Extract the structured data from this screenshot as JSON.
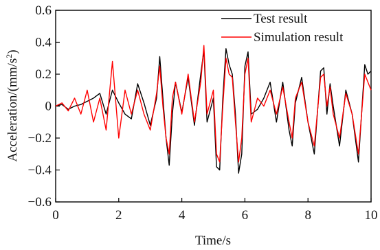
{
  "chart_data": {
    "type": "line",
    "xlabel": "Time/s",
    "ylabel_main": "Acceleration/(mm/s",
    "ylabel_sup": "2",
    "ylabel_close": ")",
    "xlim": [
      0,
      10
    ],
    "ylim": [
      -0.6,
      0.6
    ],
    "x_ticks": [
      0,
      2,
      4,
      6,
      8,
      10
    ],
    "x_tick_labels": [
      "0",
      "2",
      "4",
      "6",
      "8",
      "10"
    ],
    "y_ticks": [
      -0.6,
      -0.4,
      -0.2,
      0,
      0.2,
      0.4,
      0.6
    ],
    "y_tick_labels": [
      "−0.6",
      "−0.4",
      "−0.2",
      "0",
      "0.2",
      "0.4",
      "0.6"
    ],
    "grid": false,
    "legend_position": "top-right",
    "series": [
      {
        "name": "Test result",
        "color": "#000000",
        "x": [
          0.0,
          0.2,
          0.4,
          0.6,
          0.8,
          1.0,
          1.2,
          1.4,
          1.6,
          1.8,
          2.0,
          2.2,
          2.4,
          2.6,
          2.8,
          3.0,
          3.2,
          3.3,
          3.4,
          3.5,
          3.6,
          3.7,
          3.8,
          4.0,
          4.2,
          4.4,
          4.6,
          4.7,
          4.8,
          5.0,
          5.1,
          5.2,
          5.3,
          5.4,
          5.5,
          5.6,
          5.7,
          5.8,
          5.9,
          6.0,
          6.1,
          6.2,
          6.4,
          6.6,
          6.8,
          7.0,
          7.2,
          7.4,
          7.5,
          7.6,
          7.8,
          8.0,
          8.2,
          8.4,
          8.5,
          8.6,
          8.7,
          8.8,
          9.0,
          9.2,
          9.4,
          9.6,
          9.8,
          9.9,
          10.0
        ],
        "y": [
          0.0,
          0.01,
          -0.02,
          0.0,
          0.01,
          0.03,
          0.05,
          0.08,
          -0.05,
          0.1,
          0.02,
          -0.05,
          -0.08,
          0.14,
          0.02,
          -0.12,
          0.05,
          0.31,
          0.05,
          -0.2,
          -0.37,
          -0.05,
          0.15,
          -0.04,
          0.18,
          -0.12,
          0.2,
          0.35,
          -0.1,
          0.05,
          -0.38,
          -0.4,
          0.05,
          0.36,
          0.26,
          0.2,
          -0.05,
          -0.42,
          -0.3,
          0.25,
          0.34,
          -0.05,
          -0.02,
          0.05,
          0.15,
          -0.1,
          0.15,
          -0.15,
          -0.25,
          0.02,
          0.18,
          -0.1,
          -0.3,
          0.22,
          0.24,
          -0.05,
          0.14,
          0.0,
          -0.25,
          0.1,
          -0.05,
          -0.35,
          0.26,
          0.2,
          0.22
        ]
      },
      {
        "name": "Simulation result",
        "color": "#ff0000",
        "x": [
          0.0,
          0.2,
          0.4,
          0.6,
          0.8,
          1.0,
          1.2,
          1.4,
          1.6,
          1.8,
          2.0,
          2.2,
          2.4,
          2.6,
          2.8,
          3.0,
          3.2,
          3.3,
          3.4,
          3.5,
          3.6,
          3.7,
          3.8,
          4.0,
          4.2,
          4.4,
          4.6,
          4.7,
          4.8,
          5.0,
          5.1,
          5.2,
          5.3,
          5.4,
          5.5,
          5.6,
          5.7,
          5.8,
          5.9,
          6.0,
          6.1,
          6.2,
          6.4,
          6.6,
          6.8,
          7.0,
          7.2,
          7.4,
          7.5,
          7.6,
          7.8,
          8.0,
          8.2,
          8.4,
          8.5,
          8.6,
          8.7,
          8.8,
          9.0,
          9.2,
          9.4,
          9.6,
          9.8,
          9.9,
          10.0
        ],
        "y": [
          0.0,
          0.02,
          -0.03,
          0.05,
          -0.05,
          0.1,
          -0.1,
          0.05,
          -0.15,
          0.28,
          -0.2,
          0.1,
          -0.05,
          0.1,
          -0.05,
          -0.15,
          0.08,
          0.25,
          0.0,
          -0.2,
          -0.3,
          0.05,
          0.15,
          -0.05,
          0.2,
          -0.1,
          0.15,
          0.38,
          -0.05,
          0.1,
          -0.3,
          -0.35,
          0.0,
          0.3,
          0.2,
          0.18,
          -0.1,
          -0.35,
          -0.2,
          0.2,
          0.3,
          -0.1,
          0.05,
          0.0,
          0.1,
          -0.05,
          0.12,
          -0.1,
          -0.2,
          0.05,
          0.15,
          -0.1,
          -0.25,
          0.18,
          0.2,
          0.0,
          0.12,
          -0.05,
          -0.2,
          0.08,
          -0.05,
          -0.3,
          0.2,
          0.15,
          0.1
        ]
      }
    ]
  }
}
